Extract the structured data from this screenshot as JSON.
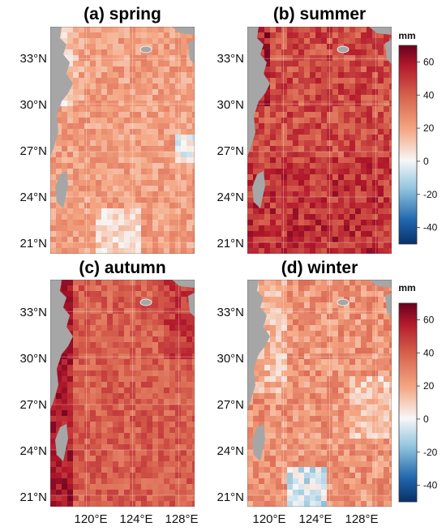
{
  "figure": {
    "panels": [
      {
        "id": "spring",
        "title": "(a) spring",
        "overall_level": 22,
        "variation": 9
      },
      {
        "id": "summer",
        "title": "(b) summer",
        "overall_level": 45,
        "variation": 12
      },
      {
        "id": "autumn",
        "title": "(c) autumn",
        "overall_level": 40,
        "variation": 9
      },
      {
        "id": "winter",
        "title": "(d) winter",
        "overall_level": 25,
        "variation": 11
      }
    ],
    "lat_ticks": [
      "33°N",
      "30°N",
      "27°N",
      "24°N",
      "21°N"
    ],
    "lon_ticks": [
      "120°E",
      "124°E",
      "128°E"
    ],
    "colorbars": [
      {
        "unit": "mm",
        "ticks": [
          "60",
          "40",
          "20",
          "0",
          "-20",
          "-40"
        ],
        "min": -50,
        "max": 70
      },
      {
        "unit": "mm",
        "ticks": [
          "60",
          "40",
          "20",
          "0",
          "-20",
          "-40"
        ],
        "min": -50,
        "max": 70
      }
    ],
    "colors": {
      "land": "#a6a6a6",
      "colormap": [
        "#08306b",
        "#2c7bb6",
        "#abd9e9",
        "#f7f7f7",
        "#f4a582",
        "#d6604d",
        "#b2182b",
        "#67001f"
      ]
    }
  }
}
